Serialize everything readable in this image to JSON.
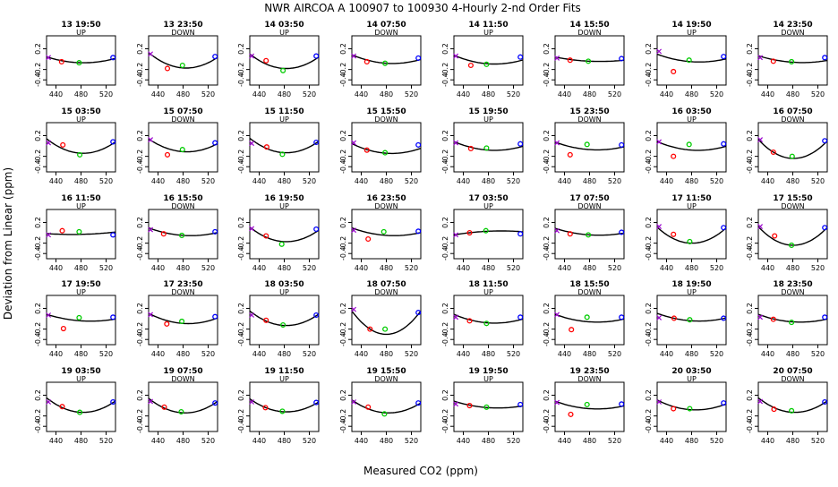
{
  "figure": {
    "title": "NWR   AIRCOA A   100907 to 100930   4-Hourly 2-nd Order Fits",
    "ylabel": "Deviation from Linear (ppm)",
    "xlabel": "Measured CO2 (ppm)"
  },
  "colors": {
    "standard1": "#9900cc",
    "standard2": "#ff0000",
    "standard3": "#00cc00",
    "standard4": "#0000ff",
    "curve": "#000000"
  },
  "chart_data": {
    "type": "scatter",
    "layout": "small-multiples 5 rows x 8 columns",
    "xlim": [
      425,
      535
    ],
    "ylim": [
      -0.5,
      0.45
    ],
    "xticks": [
      440,
      480,
      520
    ],
    "yticks": [
      0.2,
      -0.2,
      -0.4
    ],
    "ytick_labels": [
      "0.2",
      "-0.2",
      "-0.4"
    ],
    "standards_x": [
      427,
      448,
      478,
      531
    ],
    "panels": [
      {
        "title": "13 19:50",
        "dir": "UP",
        "a": -0.07,
        "b": -0.1,
        "c": 0.1,
        "pts": [
          [
            428,
            0.03
          ],
          [
            449,
            -0.05
          ],
          [
            477,
            -0.07
          ],
          [
            531,
            0.03
          ]
        ]
      },
      {
        "title": "13 23:50",
        "dir": "DOWN",
        "a": -0.17,
        "b": -0.3,
        "c": 0.25,
        "pts": [
          [
            428,
            0.1
          ],
          [
            455,
            -0.18
          ],
          [
            479,
            -0.12
          ],
          [
            531,
            0.05
          ]
        ]
      },
      {
        "title": "14 03:50",
        "dir": "UP",
        "a": -0.18,
        "b": -0.2,
        "c": 0.25,
        "pts": [
          [
            428,
            0.06
          ],
          [
            451,
            -0.03
          ],
          [
            478,
            -0.22
          ],
          [
            531,
            0.06
          ]
        ]
      },
      {
        "title": "14 07:50",
        "dir": "DOWN",
        "a": -0.08,
        "b": -0.3,
        "c": 0.12,
        "pts": [
          [
            428,
            0.06
          ],
          [
            449,
            -0.05
          ],
          [
            478,
            -0.08
          ],
          [
            531,
            0.02
          ]
        ]
      },
      {
        "title": "14 11:50",
        "dir": "UP",
        "a": -0.09,
        "b": -0.3,
        "c": 0.12,
        "pts": [
          [
            428,
            0.06
          ],
          [
            452,
            -0.12
          ],
          [
            477,
            -0.1
          ],
          [
            531,
            0.04
          ]
        ]
      },
      {
        "title": "14 15:50",
        "dir": "DOWN",
        "a": -0.04,
        "b": -0.2,
        "c": 0.05,
        "pts": [
          [
            428,
            0.02
          ],
          [
            449,
            -0.02
          ],
          [
            478,
            -0.04
          ],
          [
            531,
            0.01
          ]
        ]
      },
      {
        "title": "14 19:50",
        "dir": "UP",
        "a": -0.05,
        "b": -0.3,
        "c": 0.1,
        "pts": [
          [
            428,
            0.15
          ],
          [
            451,
            -0.24
          ],
          [
            476,
            -0.02
          ],
          [
            531,
            0.05
          ]
        ]
      },
      {
        "title": "14 23:50",
        "dir": "DOWN",
        "a": -0.06,
        "b": -0.3,
        "c": 0.08,
        "pts": [
          [
            428,
            0.03
          ],
          [
            449,
            -0.04
          ],
          [
            478,
            -0.05
          ],
          [
            531,
            0.03
          ]
        ]
      },
      {
        "title": "15 03:50",
        "dir": "UP",
        "a": -0.14,
        "b": -0.2,
        "c": 0.25,
        "pts": [
          [
            428,
            0.06
          ],
          [
            451,
            0.02
          ],
          [
            478,
            -0.17
          ],
          [
            531,
            0.08
          ]
        ]
      },
      {
        "title": "15 07:50",
        "dir": "DOWN",
        "a": -0.11,
        "b": -0.3,
        "c": 0.2,
        "pts": [
          [
            428,
            0.12
          ],
          [
            455,
            -0.17
          ],
          [
            479,
            -0.07
          ],
          [
            531,
            0.06
          ]
        ]
      },
      {
        "title": "15 11:50",
        "dir": "UP",
        "a": -0.13,
        "b": -0.2,
        "c": 0.25,
        "pts": [
          [
            428,
            0.05
          ],
          [
            452,
            -0.02
          ],
          [
            477,
            -0.16
          ],
          [
            531,
            0.07
          ]
        ]
      },
      {
        "title": "15 15:50",
        "dir": "DOWN",
        "a": -0.14,
        "b": -0.3,
        "c": 0.14,
        "pts": [
          [
            428,
            0.06
          ],
          [
            449,
            -0.08
          ],
          [
            478,
            -0.13
          ],
          [
            531,
            0.02
          ]
        ]
      },
      {
        "title": "15 19:50",
        "dir": "UP",
        "a": -0.08,
        "b": -0.3,
        "c": 0.12,
        "pts": [
          [
            428,
            0.06
          ],
          [
            452,
            -0.05
          ],
          [
            477,
            -0.04
          ],
          [
            531,
            0.04
          ]
        ]
      },
      {
        "title": "15 23:50",
        "dir": "DOWN",
        "a": -0.07,
        "b": -0.3,
        "c": 0.1,
        "pts": [
          [
            428,
            0.06
          ],
          [
            449,
            -0.17
          ],
          [
            476,
            0.03
          ],
          [
            531,
            0.02
          ]
        ]
      },
      {
        "title": "16 03:50",
        "dir": "UP",
        "a": -0.08,
        "b": -0.3,
        "c": 0.12,
        "pts": [
          [
            428,
            0.08
          ],
          [
            451,
            -0.2
          ],
          [
            476,
            0.03
          ],
          [
            531,
            0.04
          ]
        ]
      },
      {
        "title": "16 07:50",
        "dir": "DOWN",
        "a": -0.24,
        "b": -0.1,
        "c": 0.35,
        "pts": [
          [
            428,
            0.12
          ],
          [
            449,
            -0.12
          ],
          [
            479,
            -0.2
          ],
          [
            531,
            0.1
          ]
        ]
      },
      {
        "title": "16 11:50",
        "dir": "UP",
        "a": -0.03,
        "b": 0.1,
        "c": 0.03,
        "pts": [
          [
            428,
            -0.04
          ],
          [
            450,
            0.04
          ],
          [
            477,
            0.02
          ],
          [
            531,
            -0.04
          ]
        ]
      },
      {
        "title": "16 15:50",
        "dir": "DOWN",
        "a": -0.05,
        "b": -0.3,
        "c": 0.1,
        "pts": [
          [
            428,
            0.06
          ],
          [
            449,
            -0.02
          ],
          [
            478,
            -0.05
          ],
          [
            531,
            0.02
          ]
        ]
      },
      {
        "title": "16 19:50",
        "dir": "UP",
        "a": -0.17,
        "b": -0.2,
        "c": 0.25,
        "pts": [
          [
            428,
            0.08
          ],
          [
            451,
            -0.06
          ],
          [
            476,
            -0.22
          ],
          [
            531,
            0.07
          ]
        ]
      },
      {
        "title": "16 23:50",
        "dir": "DOWN",
        "a": -0.05,
        "b": -0.3,
        "c": 0.1,
        "pts": [
          [
            428,
            0.05
          ],
          [
            451,
            -0.12
          ],
          [
            476,
            0.02
          ],
          [
            531,
            0.03
          ]
        ]
      },
      {
        "title": "17 03:50",
        "dir": "UP",
        "a": 0.03,
        "b": 0.2,
        "c": -0.04,
        "pts": [
          [
            428,
            -0.04
          ],
          [
            450,
            0.0
          ],
          [
            476,
            0.04
          ],
          [
            531,
            -0.02
          ]
        ]
      },
      {
        "title": "17 07:50",
        "dir": "DOWN",
        "a": -0.04,
        "b": -0.3,
        "c": 0.08,
        "pts": [
          [
            428,
            0.04
          ],
          [
            449,
            -0.02
          ],
          [
            478,
            -0.04
          ],
          [
            531,
            0.01
          ]
        ]
      },
      {
        "title": "17 11:50",
        "dir": "UP",
        "a": -0.2,
        "b": -0.05,
        "c": 0.3,
        "pts": [
          [
            428,
            0.12
          ],
          [
            451,
            -0.03
          ],
          [
            477,
            -0.17
          ],
          [
            531,
            0.1
          ]
        ]
      },
      {
        "title": "17 15:50",
        "dir": "DOWN",
        "a": -0.24,
        "b": -0.05,
        "c": 0.35,
        "pts": [
          [
            428,
            0.12
          ],
          [
            451,
            -0.06
          ],
          [
            478,
            -0.24
          ],
          [
            531,
            0.1
          ]
        ]
      },
      {
        "title": "17 19:50",
        "dir": "UP",
        "a": -0.04,
        "b": -0.3,
        "c": 0.08,
        "pts": [
          [
            428,
            0.07
          ],
          [
            452,
            -0.19
          ],
          [
            477,
            0.02
          ],
          [
            531,
            0.03
          ]
        ]
      },
      {
        "title": "17 23:50",
        "dir": "DOWN",
        "a": -0.09,
        "b": -0.3,
        "c": 0.15,
        "pts": [
          [
            428,
            0.08
          ],
          [
            454,
            -0.1
          ],
          [
            478,
            -0.05
          ],
          [
            531,
            0.04
          ]
        ]
      },
      {
        "title": "18 03:50",
        "dir": "UP",
        "a": -0.13,
        "b": -0.2,
        "c": 0.25,
        "pts": [
          [
            428,
            0.07
          ],
          [
            451,
            -0.03
          ],
          [
            478,
            -0.12
          ],
          [
            531,
            0.07
          ]
        ]
      },
      {
        "title": "18 07:50",
        "dir": "DOWN",
        "a": -0.3,
        "b": 0.0,
        "c": 0.45,
        "pts": [
          [
            428,
            0.18
          ],
          [
            454,
            -0.2
          ],
          [
            478,
            -0.2
          ],
          [
            531,
            0.12
          ]
        ]
      },
      {
        "title": "18 11:50",
        "dir": "UP",
        "a": -0.08,
        "b": -0.3,
        "c": 0.12,
        "pts": [
          [
            428,
            0.03
          ],
          [
            450,
            -0.04
          ],
          [
            477,
            -0.09
          ],
          [
            531,
            0.03
          ]
        ]
      },
      {
        "title": "18 15:50",
        "dir": "DOWN",
        "a": -0.06,
        "b": -0.3,
        "c": 0.1,
        "pts": [
          [
            428,
            0.08
          ],
          [
            451,
            -0.21
          ],
          [
            476,
            0.03
          ],
          [
            531,
            0.03
          ]
        ]
      },
      {
        "title": "18 19:50",
        "dir": "UP",
        "a": -0.04,
        "b": -0.3,
        "c": 0.1,
        "pts": [
          [
            428,
            0.02
          ],
          [
            452,
            0.01
          ],
          [
            477,
            -0.02
          ],
          [
            531,
            0.01
          ]
        ]
      },
      {
        "title": "18 23:50",
        "dir": "DOWN",
        "a": -0.06,
        "b": -0.3,
        "c": 0.1,
        "pts": [
          [
            428,
            0.03
          ],
          [
            449,
            -0.01
          ],
          [
            478,
            -0.07
          ],
          [
            531,
            0.03
          ]
        ]
      },
      {
        "title": "19 03:50",
        "dir": "UP",
        "a": -0.13,
        "b": -0.2,
        "c": 0.25,
        "pts": [
          [
            428,
            0.07
          ],
          [
            450,
            -0.02
          ],
          [
            478,
            -0.13
          ],
          [
            531,
            0.07
          ]
        ]
      },
      {
        "title": "19 07:50",
        "dir": "DOWN",
        "a": -0.14,
        "b": -0.2,
        "c": 0.25,
        "pts": [
          [
            428,
            0.08
          ],
          [
            450,
            -0.03
          ],
          [
            477,
            -0.12
          ],
          [
            531,
            0.05
          ]
        ]
      },
      {
        "title": "19 11:50",
        "dir": "UP",
        "a": -0.12,
        "b": -0.2,
        "c": 0.22,
        "pts": [
          [
            428,
            0.07
          ],
          [
            450,
            -0.04
          ],
          [
            477,
            -0.11
          ],
          [
            531,
            0.06
          ]
        ]
      },
      {
        "title": "19 15:50",
        "dir": "DOWN",
        "a": -0.14,
        "b": -0.2,
        "c": 0.22,
        "pts": [
          [
            428,
            0.07
          ],
          [
            451,
            -0.03
          ],
          [
            477,
            -0.16
          ],
          [
            531,
            0.05
          ]
        ]
      },
      {
        "title": "19 19:50",
        "dir": "UP",
        "a": -0.04,
        "b": -0.3,
        "c": 0.08,
        "pts": [
          [
            428,
            0.03
          ],
          [
            450,
            0.0
          ],
          [
            477,
            -0.03
          ],
          [
            531,
            0.02
          ]
        ]
      },
      {
        "title": "19 23:50",
        "dir": "DOWN",
        "a": -0.06,
        "b": -0.3,
        "c": 0.1,
        "pts": [
          [
            428,
            0.06
          ],
          [
            450,
            -0.17
          ],
          [
            476,
            0.02
          ],
          [
            531,
            0.03
          ]
        ]
      },
      {
        "title": "20 03:50",
        "dir": "UP",
        "a": -0.08,
        "b": -0.25,
        "c": 0.15,
        "pts": [
          [
            428,
            0.07
          ],
          [
            451,
            -0.06
          ],
          [
            477,
            -0.06
          ],
          [
            531,
            0.05
          ]
        ]
      },
      {
        "title": "20 07:50",
        "dir": "DOWN",
        "a": -0.13,
        "b": -0.2,
        "c": 0.25,
        "pts": [
          [
            428,
            0.08
          ],
          [
            450,
            -0.07
          ],
          [
            478,
            -0.1
          ],
          [
            531,
            0.07
          ]
        ]
      }
    ]
  }
}
